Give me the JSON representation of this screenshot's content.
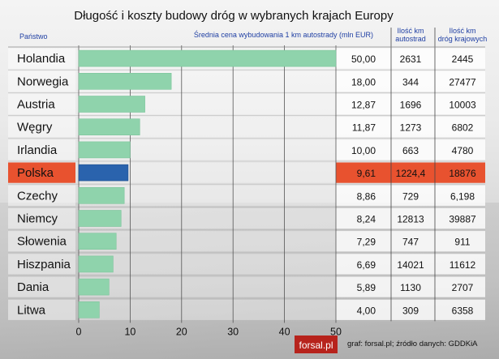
{
  "header": {
    "title": "Długość i koszty budowy dróg w wybranych krajach Europy",
    "col_country": "Państwo",
    "col_price": "Średnia cena wybudowania 1 km autostrady (mln EUR)",
    "col_motorway": [
      "Ilość km",
      "autostrad"
    ],
    "col_regional": [
      "Ilość km",
      "dróg krajowych"
    ]
  },
  "footer": {
    "logo": "forsal.pl",
    "credit": "graf: forsal.pl; źródło danych: GDDKiA"
  },
  "colors": {
    "bar": "#8fd3ac",
    "bar_highlight": "#2a63ad",
    "highlight_row": "#e8522f",
    "grid": "#555555"
  },
  "chart_data": {
    "type": "bar",
    "orientation": "horizontal",
    "title": "Długość i koszty budowy dróg w wybranych krajach Europy",
    "xlim": [
      0,
      50
    ],
    "xticks": [
      "0",
      "10",
      "20",
      "30",
      "40",
      "50"
    ],
    "grid": true,
    "highlight": "Polska",
    "categories": [
      "Holandia",
      "Norwegia",
      "Austria",
      "Węgry",
      "Irlandia",
      "Polska",
      "Czechy",
      "Niemcy",
      "Słowenia",
      "Hiszpania",
      "Dania",
      "Litwa"
    ],
    "values": [
      50.0,
      18.0,
      12.87,
      11.87,
      10.0,
      9.61,
      8.86,
      8.24,
      7.29,
      6.69,
      5.89,
      4.0
    ],
    "table": {
      "price_labels": [
        "50,00",
        "18,00",
        "12,87",
        "11,87",
        "10,00",
        "9,61",
        "8,86",
        "8,24",
        "7,29",
        "6,69",
        "5,89",
        "4,00"
      ],
      "motorway_km": [
        "2631",
        "344",
        "1696",
        "1273",
        "663",
        "1224,4",
        "729",
        "12813",
        "747",
        "14021",
        "1130",
        "309"
      ],
      "regional_km": [
        "2445",
        "27477",
        "10003",
        "6802",
        "4780",
        "18876",
        "6,198",
        "39887",
        "911",
        "11612",
        "2707",
        "6358"
      ]
    }
  }
}
